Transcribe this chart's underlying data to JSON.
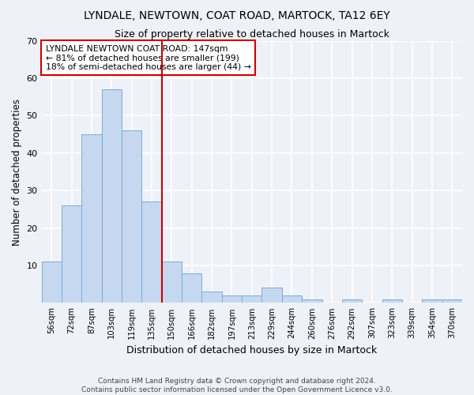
{
  "title1": "LYNDALE, NEWTOWN, COAT ROAD, MARTOCK, TA12 6EY",
  "title2": "Size of property relative to detached houses in Martock",
  "xlabel": "Distribution of detached houses by size in Martock",
  "ylabel": "Number of detached properties",
  "footnote1": "Contains HM Land Registry data © Crown copyright and database right 2024.",
  "footnote2": "Contains public sector information licensed under the Open Government Licence v3.0.",
  "categories": [
    "56sqm",
    "72sqm",
    "87sqm",
    "103sqm",
    "119sqm",
    "135sqm",
    "150sqm",
    "166sqm",
    "182sqm",
    "197sqm",
    "213sqm",
    "229sqm",
    "244sqm",
    "260sqm",
    "276sqm",
    "292sqm",
    "307sqm",
    "323sqm",
    "339sqm",
    "354sqm",
    "370sqm"
  ],
  "values": [
    11,
    26,
    45,
    57,
    46,
    27,
    11,
    8,
    3,
    2,
    2,
    4,
    2,
    1,
    0,
    1,
    0,
    1,
    0,
    1,
    1
  ],
  "bar_color": "#c5d8f0",
  "bar_edge_color": "#7aadd4",
  "vline_x_index": 6,
  "vline_color": "#cc0000",
  "annotation_line1": "LYNDALE NEWTOWN COAT ROAD: 147sqm",
  "annotation_line2": "← 81% of detached houses are smaller (199)",
  "annotation_line3": "18% of semi-detached houses are larger (44) →",
  "annotation_box_color": "white",
  "annotation_box_edge": "#cc0000",
  "background_color": "#eef2f8",
  "grid_color": "white",
  "ylim": [
    0,
    70
  ],
  "yticks": [
    0,
    10,
    20,
    30,
    40,
    50,
    60,
    70
  ]
}
